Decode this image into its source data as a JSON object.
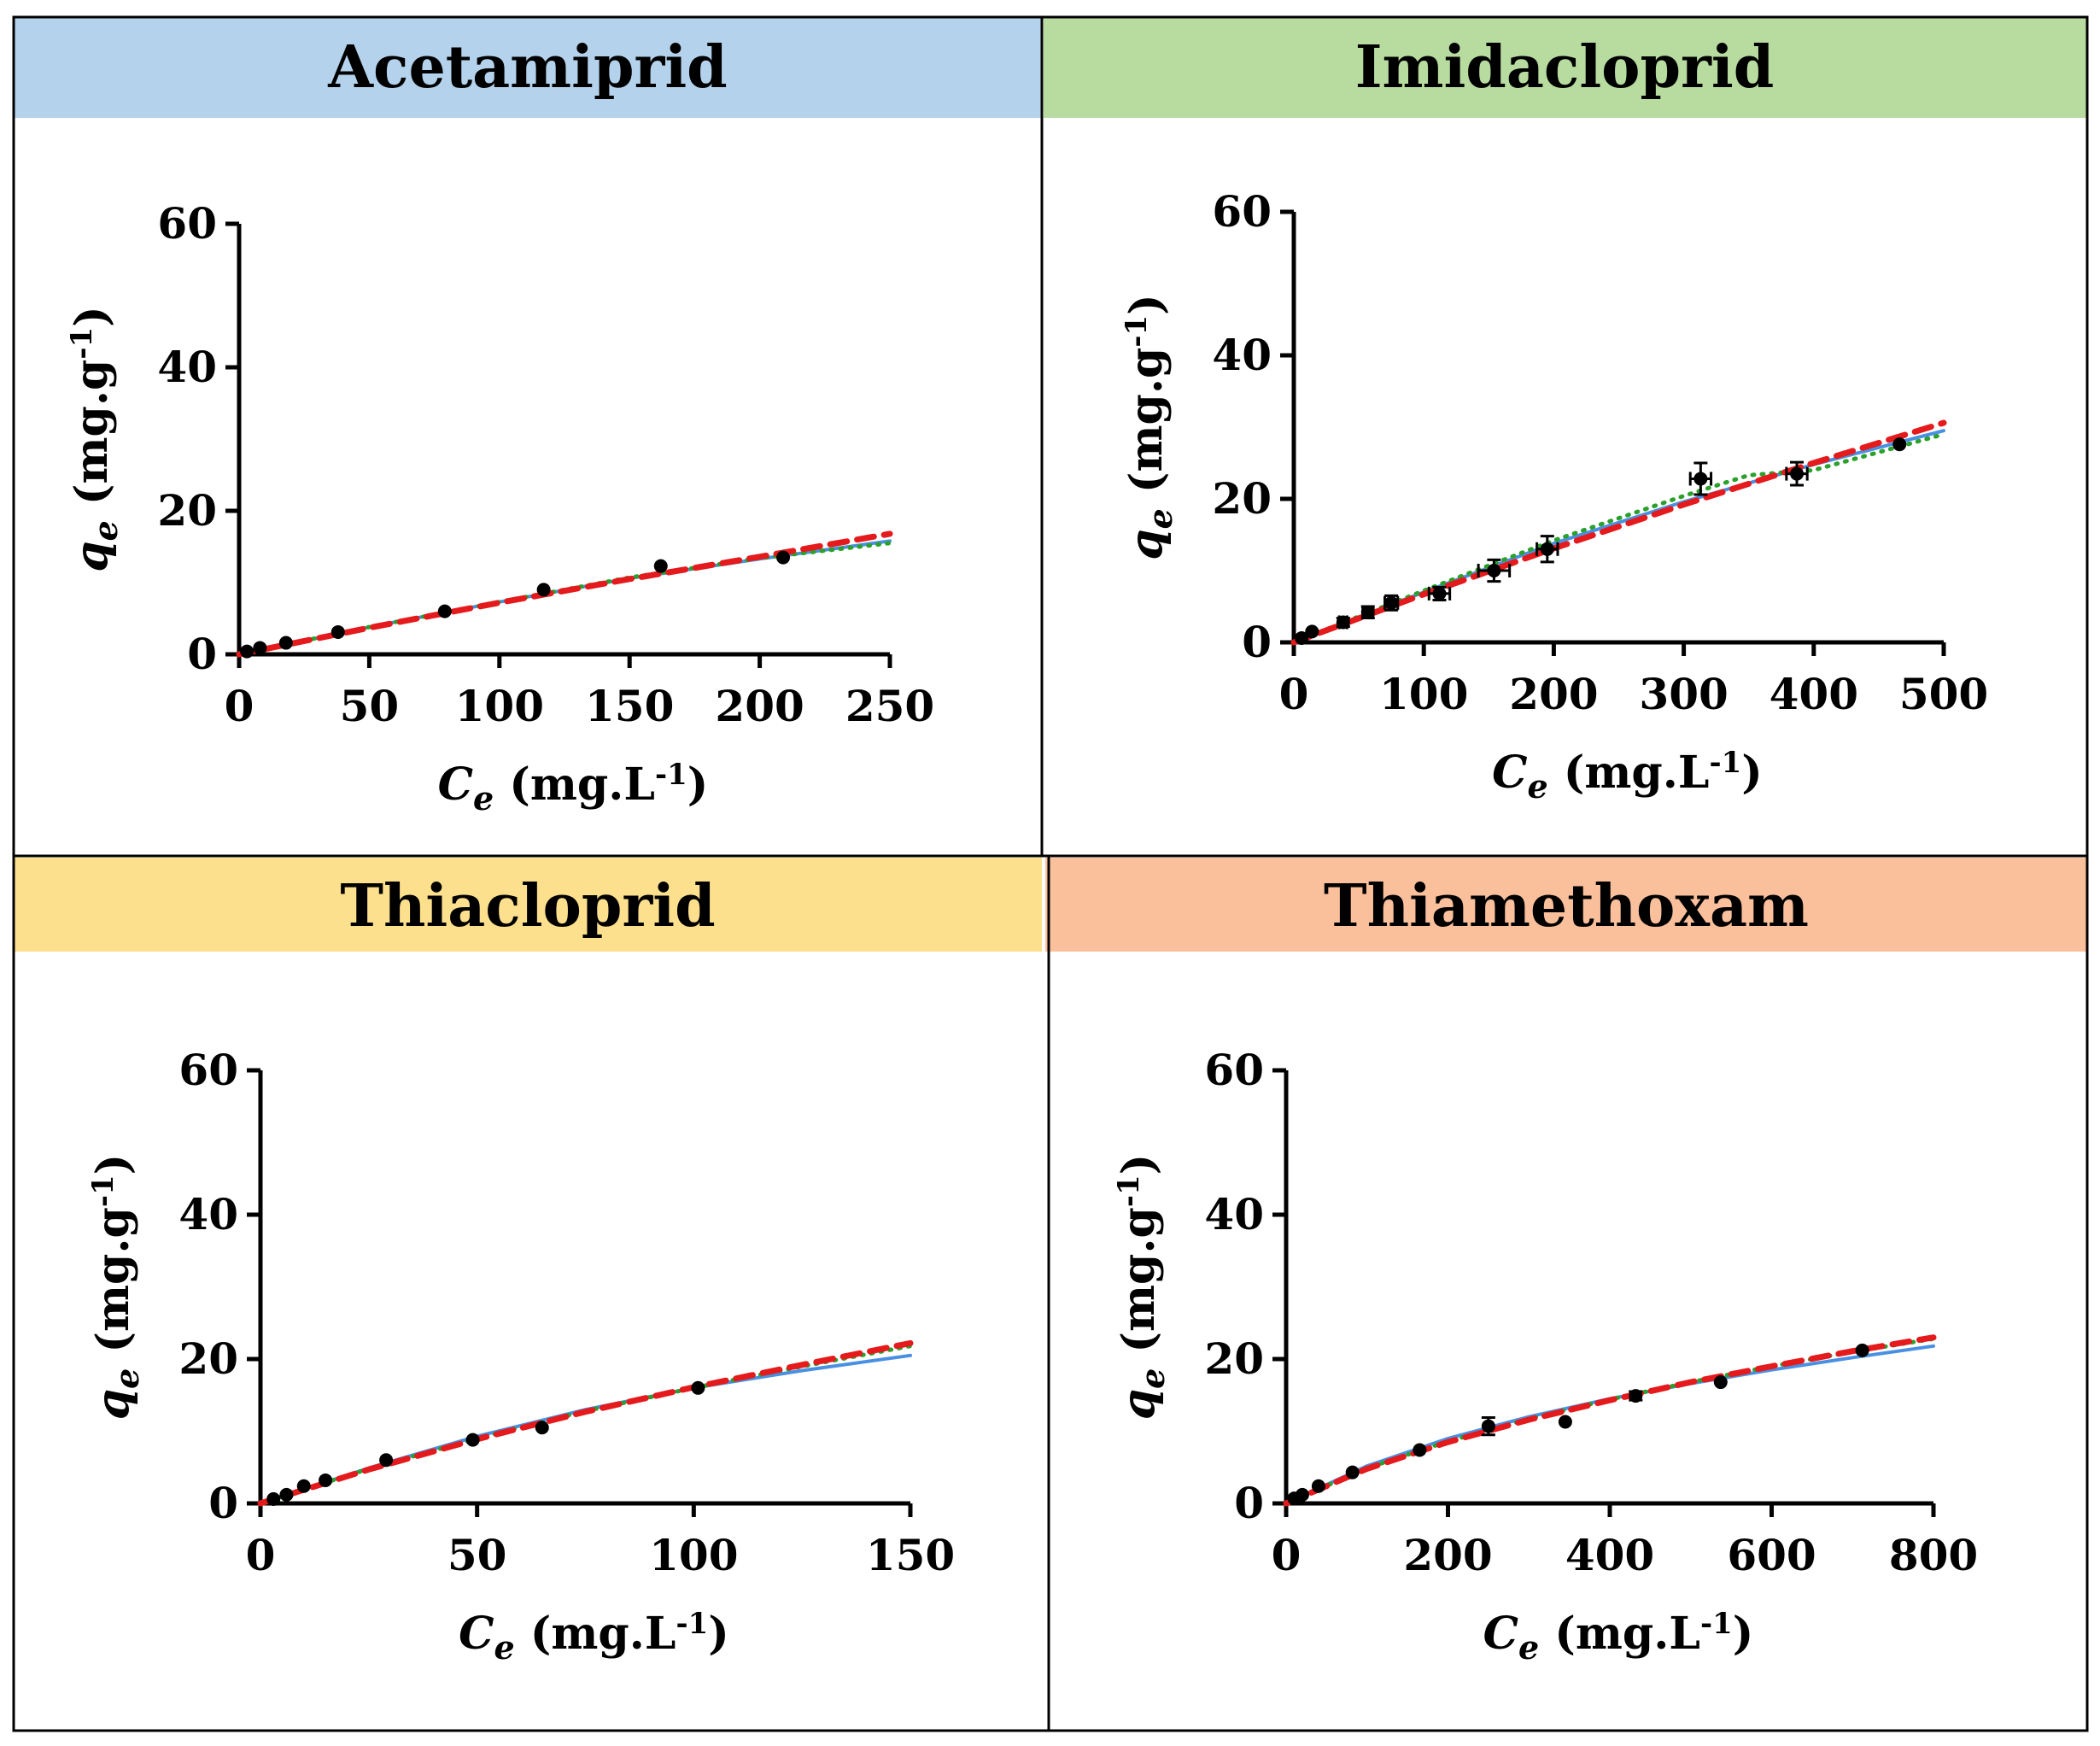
{
  "figure": {
    "layout": "2x2 grid of adsorption isotherm panels",
    "colors": {
      "series_blue": "#4a90e2",
      "series_green": "#2ca02c",
      "series_red": "#e41a1c",
      "points": "#000000"
    }
  },
  "chart_data": [
    {
      "type": "scatter",
      "title": "Acetamiprid",
      "header_color": "#b4d2ec",
      "xlabel_sym": "C",
      "xlabel_sub": "e",
      "xlabel_unit": " (mg.L",
      "xlabel_exp": "-1",
      "xlabel_end": ")",
      "ylabel_sym": "q",
      "ylabel_sub": "e",
      "ylabel_unit": " (mg.g",
      "ylabel_exp": "-1",
      "ylabel_end": ")",
      "xlim": [
        0,
        250
      ],
      "ylim": [
        0,
        60
      ],
      "xticks": [
        0,
        50,
        100,
        150,
        200,
        250
      ],
      "yticks": [
        0,
        20,
        40,
        60
      ],
      "grid": false,
      "legend": "none",
      "points": [
        {
          "x": 3,
          "y": 0.4
        },
        {
          "x": 8,
          "y": 0.9
        },
        {
          "x": 18,
          "y": 1.6
        },
        {
          "x": 38,
          "y": 3.1
        },
        {
          "x": 79,
          "y": 6.0
        },
        {
          "x": 117,
          "y": 9.0
        },
        {
          "x": 162,
          "y": 12.3
        },
        {
          "x": 209,
          "y": 13.5
        }
      ],
      "fits": [
        {
          "style": "solid",
          "color": "#4a90e2",
          "x": [
            0,
            50,
            100,
            150,
            200,
            250
          ],
          "y": [
            0,
            3.8,
            7.3,
            10.6,
            13.3,
            15.8
          ]
        },
        {
          "style": "dotted",
          "color": "#2ca02c",
          "x": [
            0,
            50,
            100,
            150,
            200,
            250
          ],
          "y": [
            0,
            3.8,
            7.3,
            10.7,
            13.4,
            15.5
          ]
        },
        {
          "style": "dashed",
          "color": "#e41a1c",
          "x": [
            0,
            50,
            100,
            150,
            200,
            250
          ],
          "y": [
            0,
            3.7,
            7.2,
            10.5,
            13.6,
            16.8
          ]
        }
      ]
    },
    {
      "type": "scatter",
      "title": "Imidacloprid",
      "header_color": "#b8dca0",
      "xlabel_sym": "C",
      "xlabel_sub": "e",
      "xlabel_unit": " (mg.L",
      "xlabel_exp": "-1",
      "xlabel_end": ")",
      "ylabel_sym": "q",
      "ylabel_sub": "e",
      "ylabel_unit": " (mg.g",
      "ylabel_exp": "-1",
      "ylabel_end": ")",
      "xlim": [
        0,
        500
      ],
      "ylim": [
        0,
        60
      ],
      "xticks": [
        0,
        100,
        200,
        300,
        400,
        500
      ],
      "yticks": [
        0,
        20,
        40,
        60
      ],
      "grid": false,
      "legend": "none",
      "points": [
        {
          "x": 6,
          "y": 0.6,
          "xerr": 0,
          "yerr": 0
        },
        {
          "x": 14,
          "y": 1.5,
          "xerr": 0,
          "yerr": 0
        },
        {
          "x": 38,
          "y": 2.8,
          "xerr": 3,
          "yerr": 0.6
        },
        {
          "x": 57,
          "y": 4.2,
          "xerr": 4,
          "yerr": 0.8
        },
        {
          "x": 75,
          "y": 5.5,
          "xerr": 5,
          "yerr": 1.0
        },
        {
          "x": 112,
          "y": 6.8,
          "xerr": 8,
          "yerr": 0.9
        },
        {
          "x": 154,
          "y": 10.0,
          "xerr": 12,
          "yerr": 1.5
        },
        {
          "x": 195,
          "y": 13.0,
          "xerr": 8,
          "yerr": 1.8
        },
        {
          "x": 313,
          "y": 22.8,
          "xerr": 8,
          "yerr": 2.2
        },
        {
          "x": 387,
          "y": 23.5,
          "xerr": 8,
          "yerr": 1.6
        },
        {
          "x": 466,
          "y": 27.6,
          "xerr": 0,
          "yerr": 0
        }
      ],
      "fits": [
        {
          "style": "solid",
          "color": "#4a90e2",
          "x": [
            0,
            100,
            200,
            300,
            400,
            500
          ],
          "y": [
            0,
            7.0,
            13.8,
            19.6,
            24.8,
            29.5
          ]
        },
        {
          "style": "dotted",
          "color": "#2ca02c",
          "x": [
            0,
            100,
            200,
            300,
            350,
            400,
            500
          ],
          "y": [
            0,
            7.2,
            14.2,
            20.4,
            23.3,
            24.0,
            29.0
          ]
        },
        {
          "style": "dashed",
          "color": "#e41a1c",
          "x": [
            0,
            100,
            200,
            300,
            400,
            500
          ],
          "y": [
            0,
            6.7,
            13.1,
            19.2,
            25.0,
            30.6
          ]
        }
      ]
    },
    {
      "type": "scatter",
      "title": "Thiacloprid",
      "header_color": "#fde08e",
      "xlabel_sym": "C",
      "xlabel_sub": "e",
      "xlabel_unit": " (mg.L",
      "xlabel_exp": "-1",
      "xlabel_end": ")",
      "ylabel_sym": "q",
      "ylabel_sub": "e",
      "ylabel_unit": " (mg.g",
      "ylabel_exp": "-1",
      "ylabel_end": ")",
      "xlim": [
        0,
        150
      ],
      "ylim": [
        0,
        60
      ],
      "xticks": [
        0,
        50,
        100,
        150
      ],
      "yticks": [
        0,
        20,
        40,
        60
      ],
      "grid": false,
      "legend": "none",
      "points": [
        {
          "x": 3,
          "y": 0.6
        },
        {
          "x": 6,
          "y": 1.2
        },
        {
          "x": 10,
          "y": 2.4
        },
        {
          "x": 15,
          "y": 3.2
        },
        {
          "x": 29,
          "y": 6.0
        },
        {
          "x": 49,
          "y": 8.8
        },
        {
          "x": 65,
          "y": 10.5
        },
        {
          "x": 101,
          "y": 16.0
        }
      ],
      "fits": [
        {
          "style": "solid",
          "color": "#4a90e2",
          "x": [
            0,
            25,
            50,
            75,
            100,
            125,
            150
          ],
          "y": [
            0,
            4.9,
            9.3,
            13.0,
            16.0,
            18.4,
            20.5
          ]
        },
        {
          "style": "dotted",
          "color": "#2ca02c",
          "x": [
            0,
            25,
            50,
            75,
            100,
            125,
            150
          ],
          "y": [
            0,
            4.8,
            9.0,
            12.8,
            16.0,
            19.0,
            21.8
          ]
        },
        {
          "style": "dashed",
          "color": "#e41a1c",
          "x": [
            0,
            25,
            50,
            75,
            100,
            125,
            150
          ],
          "y": [
            0,
            4.7,
            8.9,
            12.7,
            16.1,
            19.2,
            22.2
          ]
        }
      ]
    },
    {
      "type": "scatter",
      "title": "Thiamethoxam",
      "header_color": "#fac09c",
      "xlabel_sym": "C",
      "xlabel_sub": "e",
      "xlabel_unit": " (mg.L",
      "xlabel_exp": "-1",
      "xlabel_end": ")",
      "ylabel_sym": "q",
      "ylabel_sub": "e",
      "ylabel_unit": " (mg.g",
      "ylabel_exp": "-1",
      "ylabel_end": ")",
      "xlim": [
        0,
        800
      ],
      "ylim": [
        0,
        60
      ],
      "xticks": [
        0,
        200,
        400,
        600,
        800
      ],
      "yticks": [
        0,
        20,
        40,
        60
      ],
      "grid": false,
      "legend": "none",
      "points": [
        {
          "x": 10,
          "y": 0.7,
          "yerr": 0
        },
        {
          "x": 20,
          "y": 1.2,
          "yerr": 0
        },
        {
          "x": 40,
          "y": 2.4,
          "yerr": 0
        },
        {
          "x": 82,
          "y": 4.3,
          "yerr": 0
        },
        {
          "x": 165,
          "y": 7.4,
          "yerr": 0
        },
        {
          "x": 250,
          "y": 10.7,
          "yerr": 1.2
        },
        {
          "x": 345,
          "y": 11.3,
          "yerr": 0
        },
        {
          "x": 432,
          "y": 14.9,
          "yerr": 0.6
        },
        {
          "x": 537,
          "y": 16.8,
          "yerr": 0
        },
        {
          "x": 712,
          "y": 21.2,
          "yerr": 0
        }
      ],
      "fits": [
        {
          "style": "solid",
          "color": "#4a90e2",
          "x": [
            0,
            100,
            200,
            300,
            400,
            500,
            600,
            700,
            800
          ],
          "y": [
            0,
            5.2,
            9.0,
            12.0,
            14.5,
            16.6,
            18.5,
            20.2,
            21.8
          ]
        },
        {
          "style": "dotted",
          "color": "#2ca02c",
          "x": [
            0,
            100,
            200,
            300,
            400,
            500,
            600,
            700,
            800
          ],
          "y": [
            0,
            4.9,
            8.6,
            11.7,
            14.4,
            16.8,
            19.0,
            21.0,
            22.8
          ]
        },
        {
          "style": "dashed",
          "color": "#e41a1c",
          "x": [
            0,
            100,
            200,
            300,
            400,
            500,
            600,
            700,
            800
          ],
          "y": [
            0,
            4.8,
            8.5,
            11.6,
            14.3,
            16.8,
            19.0,
            21.1,
            23.0
          ]
        }
      ]
    }
  ]
}
